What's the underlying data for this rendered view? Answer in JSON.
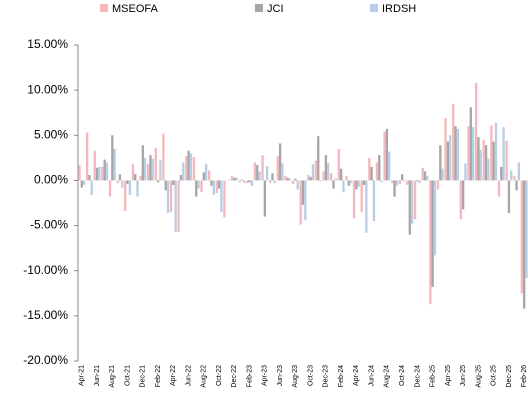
{
  "chart_data": {
    "type": "bar",
    "categories": [
      "Apr-21",
      null,
      "Jun-21",
      null,
      "Aug-21",
      null,
      "Oct-21",
      null,
      "Dec-21",
      null,
      "Feb-22",
      null,
      "Apr-22",
      null,
      "Jun-22",
      null,
      "Aug-22",
      null,
      "Oct-22",
      null,
      "Dec-22",
      null,
      "Feb-23",
      null,
      "Apr-23",
      null,
      "Jun-23",
      null,
      "Aug-23",
      null,
      "Oct-23",
      null,
      "Dec-23",
      null,
      "Feb-24",
      null,
      "Apr-24",
      null,
      "Jun-24",
      null,
      "Aug-24",
      null,
      "Oct-24",
      null,
      "Dec-24",
      null,
      "Feb-25",
      null,
      "Apr-25",
      null,
      "Jun-25",
      null,
      "Aug-25",
      null,
      "Oct-25",
      null,
      "Dec-25",
      null,
      "Feb-26"
    ],
    "series": [
      {
        "name": "MSEOFA",
        "color": "#f4b8bc",
        "values": [
          1.7,
          5.3,
          3.3,
          1.5,
          -1.8,
          -0.3,
          -3.4,
          1.8,
          0.5,
          1.8,
          3.6,
          5.2,
          -3.5,
          -5.7,
          2.7,
          2.6,
          -1.3,
          1.1,
          -1.4,
          -4.1,
          0.5,
          -0.2,
          -0.3,
          2.0,
          2.8,
          -0.3,
          2.7,
          0.5,
          -0.4,
          -4.9,
          0.6,
          2.2,
          1.0,
          0.8,
          3.5,
          0.5,
          -4.2,
          -3.5,
          2.5,
          2.0,
          5.4,
          -0.3,
          -0.4,
          -0.5,
          -4.3,
          1.4,
          -13.7,
          -1.0,
          6.9,
          8.5,
          -4.3,
          6.0,
          10.8,
          4.5,
          6.1,
          -1.8,
          4.4,
          0.5,
          -12.5
        ]
      },
      {
        "name": "JCI",
        "color": "#a6a6a6",
        "values": [
          -0.8,
          0.6,
          1.4,
          2.3,
          5.0,
          0.7,
          -0.4,
          0.7,
          3.9,
          2.8,
          -0.2,
          -1.1,
          -0.5,
          0.6,
          3.3,
          -1.8,
          0.9,
          -0.6,
          -0.9,
          0.0,
          0.3,
          0.1,
          -0.2,
          1.7,
          -4.0,
          0.8,
          4.1,
          0.3,
          0.2,
          -2.7,
          0.4,
          4.9,
          2.8,
          -0.9,
          1.3,
          -0.6,
          -1.0,
          -0.5,
          1.5,
          2.8,
          5.7,
          -1.8,
          0.7,
          -6.0,
          -0.1,
          1.0,
          -11.8,
          3.9,
          4.3,
          6.0,
          -3.2,
          8.1,
          4.8,
          3.9,
          4.3,
          1.5,
          -3.6,
          -1.1,
          -14.2
        ]
      },
      {
        "name": "IRDSH",
        "color": "#b9cde5",
        "values": [
          -0.5,
          -1.6,
          1.5,
          2.0,
          3.5,
          -0.8,
          -1.6,
          -1.8,
          2.5,
          2.4,
          2.3,
          -3.6,
          -5.7,
          2.0,
          3.0,
          -0.9,
          1.8,
          -1.6,
          -3.5,
          0.1,
          0.3,
          -0.3,
          -0.6,
          1.0,
          1.6,
          -0.3,
          1.9,
          0.2,
          -1.0,
          -4.4,
          1.8,
          -0.1,
          1.9,
          0.2,
          -1.3,
          -0.3,
          -0.7,
          -5.8,
          -4.5,
          -0.2,
          3.2,
          -0.6,
          -0.1,
          -4.8,
          -0.3,
          0.5,
          -8.3,
          1.3,
          5.0,
          5.7,
          1.9,
          5.9,
          3.4,
          2.4,
          6.4,
          5.9,
          1.1,
          2.0,
          -10.8
        ]
      }
    ],
    "ylim": [
      -20,
      15
    ],
    "yticks": [
      {
        "value": -20,
        "label": "-20.00%"
      },
      {
        "value": -15,
        "label": "-15.00%"
      },
      {
        "value": -10,
        "label": "-10.00%"
      },
      {
        "value": -5,
        "label": "-5.00%"
      },
      {
        "value": 0,
        "label": "0.00%"
      },
      {
        "value": 5,
        "label": "5.00%"
      },
      {
        "value": 10,
        "label": "10.00%"
      },
      {
        "value": 15,
        "label": "15.00%"
      }
    ],
    "grid": false
  }
}
